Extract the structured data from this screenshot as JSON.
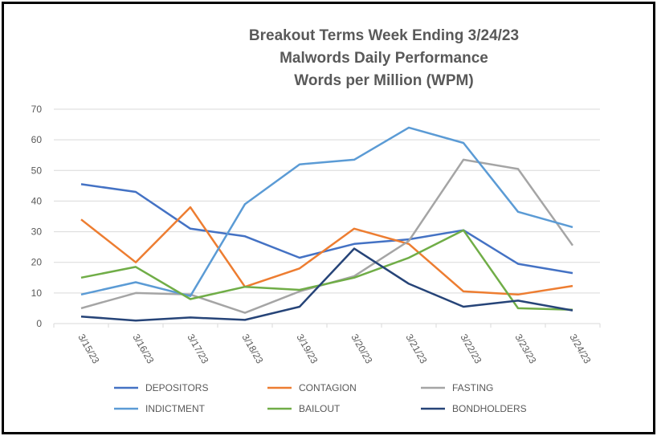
{
  "chart_data": {
    "type": "line",
    "title": [
      "Breakout Terms Week Ending 3/24/23",
      "Malwords Daily Performance",
      "Words per Million (WPM)"
    ],
    "xlabel": "",
    "ylabel": "",
    "ylim": [
      0,
      70
    ],
    "yticks": [
      0,
      10,
      20,
      30,
      40,
      50,
      60,
      70
    ],
    "grid": true,
    "legend_position": "bottom",
    "categories": [
      "3/15/23",
      "3/16/23",
      "3/17/23",
      "3/18/23",
      "3/19/23",
      "3/20/23",
      "3/21/23",
      "3/22/23",
      "3/23/23",
      "3/24/23"
    ],
    "series": [
      {
        "name": "DEPOSITORS",
        "color": "#4472C4",
        "values": [
          45.5,
          43,
          31,
          28.5,
          21.5,
          26,
          27.5,
          30.5,
          19.5,
          16.5
        ]
      },
      {
        "name": "CONTAGION",
        "color": "#ED7D31",
        "values": [
          34,
          20,
          38,
          12,
          18,
          31,
          26,
          10.5,
          9.5,
          12.3
        ]
      },
      {
        "name": "FASTING",
        "color": "#A5A5A5",
        "values": [
          5,
          10,
          9.5,
          3.5,
          10.5,
          15.5,
          27,
          53.5,
          50.5,
          25.5
        ]
      },
      {
        "name": "INDICTMENT",
        "color": "#5B9BD5",
        "values": [
          9.5,
          13.5,
          9,
          39,
          52,
          53.5,
          64,
          59,
          36.5,
          31.5
        ]
      },
      {
        "name": "BAILOUT",
        "color": "#70AD47",
        "values": [
          15,
          18.5,
          8,
          12,
          11,
          15,
          21.5,
          30.5,
          5,
          4.5
        ]
      },
      {
        "name": "BONDHOLDERS",
        "color": "#264478",
        "values": [
          2.3,
          1,
          2,
          1.2,
          5.5,
          24.5,
          13,
          5.5,
          7.5,
          4.3
        ]
      }
    ]
  }
}
